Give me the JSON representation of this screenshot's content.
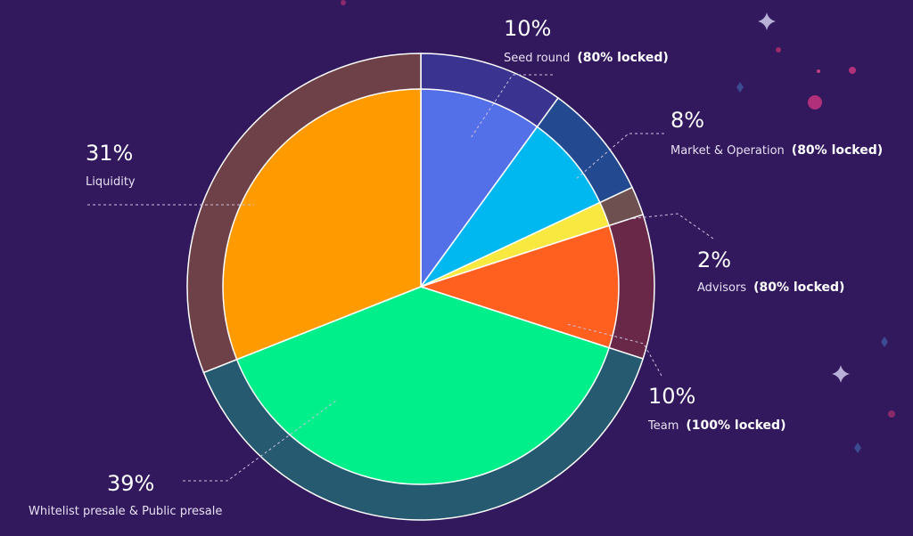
{
  "chart_data": {
    "type": "pie",
    "series": [
      {
        "name": "Seed round",
        "locked": "(80% locked)",
        "value": 10,
        "value_label": "10%",
        "color": "#5470e8",
        "ring_color": "#3a3490"
      },
      {
        "name": "Market & Operation",
        "locked": "(80% locked)",
        "value": 8,
        "value_label": "8%",
        "color": "#00b8f0",
        "ring_color": "#234a90"
      },
      {
        "name": "Advisors",
        "locked": "(80% locked)",
        "value": 2,
        "value_label": "2%",
        "color": "#f8e840",
        "ring_color": "#6e5050"
      },
      {
        "name": "Team",
        "locked": "(100% locked)",
        "value": 10,
        "value_label": "10%",
        "color": "#ff6020",
        "ring_color": "#6a2848"
      },
      {
        "name": "Whitelist presale & Public presale",
        "locked": null,
        "value": 39,
        "value_label": "39%",
        "color": "#00ef8a",
        "ring_color": "#265a70"
      },
      {
        "name": "Liquidity",
        "locked": null,
        "value": 31,
        "value_label": "31%",
        "color": "#ff9a00",
        "ring_color": "#6e4048"
      }
    ]
  }
}
